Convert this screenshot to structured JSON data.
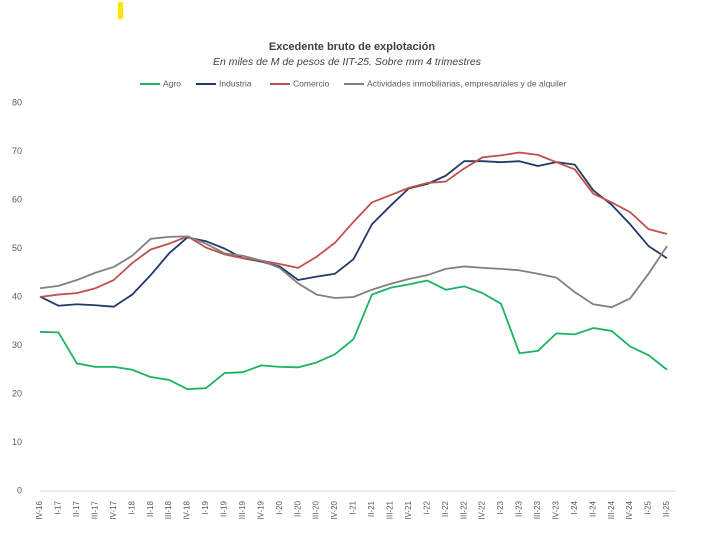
{
  "chart_data": {
    "type": "line",
    "title": "Excedente bruto de explotación",
    "subtitle": "En miles de M de pesos de IIT-25. Sobre mm 4 trimestres",
    "categories": [
      "IV-16",
      "I-17",
      "II-17",
      "III-17",
      "IV-17",
      "I-18",
      "II-18",
      "III-18",
      "IV-18",
      "I-19",
      "II-19",
      "III-19",
      "IV-19",
      "I-20",
      "II-20",
      "III-20",
      "IV-20",
      "I-21",
      "II-21",
      "III-21",
      "IV-21",
      "I-22",
      "II-22",
      "III-22",
      "IV-22",
      "I-23",
      "II-23",
      "III-23",
      "IV-23",
      "I-24",
      "II-24",
      "III-24",
      "IV-24",
      "I-25",
      "II-25"
    ],
    "series": [
      {
        "name": "Agro",
        "color": "#1db262",
        "values": [
          32.8,
          32.7,
          26.3,
          25.6,
          25.6,
          25.0,
          23.5,
          22.9,
          21.0,
          21.2,
          24.3,
          24.5,
          25.9,
          25.6,
          25.5,
          26.5,
          28.2,
          31.3,
          40.5,
          41.9,
          42.6,
          43.4,
          41.5,
          42.2,
          40.8,
          38.6,
          28.4,
          28.9,
          32.5,
          32.3,
          33.6,
          33.0,
          29.8,
          28.0,
          25.0
        ]
      },
      {
        "name": "Industria",
        "color": "#223a66",
        "values": [
          40.1,
          38.2,
          38.5,
          38.3,
          38.0,
          40.5,
          44.5,
          49.0,
          52.3,
          51.5,
          50.0,
          48.0,
          47.3,
          46.3,
          43.5,
          44.2,
          44.8,
          47.8,
          55.0,
          58.8,
          62.4,
          63.3,
          65.0,
          68.0,
          68.0,
          67.8,
          68.0,
          67.0,
          67.8,
          67.3,
          62.0,
          59.0,
          55.0,
          50.5,
          48.0
        ]
      },
      {
        "name": "Comercio",
        "color": "#c0504d",
        "values": [
          40.0,
          40.5,
          40.8,
          41.8,
          43.5,
          47.0,
          49.8,
          51.0,
          52.5,
          50.2,
          48.8,
          48.0,
          47.5,
          46.8,
          46.0,
          48.3,
          51.2,
          55.5,
          59.5,
          61.0,
          62.5,
          63.5,
          63.8,
          66.5,
          68.8,
          69.2,
          69.8,
          69.3,
          67.8,
          66.3,
          61.3,
          59.5,
          57.5,
          54.0,
          53.0
        ]
      },
      {
        "name": "Actividades inmobiliarias, empresariales y de alquiler",
        "color": "#808080",
        "values": [
          41.8,
          42.3,
          43.5,
          45.0,
          46.2,
          48.5,
          52.0,
          52.4,
          52.5,
          51.0,
          49.0,
          48.5,
          47.5,
          46.0,
          42.8,
          40.5,
          39.8,
          40.0,
          41.5,
          42.7,
          43.7,
          44.5,
          45.8,
          46.3,
          46.0,
          45.8,
          45.5,
          44.8,
          44.0,
          41.0,
          38.5,
          37.9,
          39.7,
          44.8,
          50.5
        ]
      }
    ],
    "ylim": [
      0,
      80
    ],
    "yticks": [
      0,
      10,
      20,
      30,
      40,
      50,
      60,
      70,
      80
    ],
    "grid": false
  }
}
